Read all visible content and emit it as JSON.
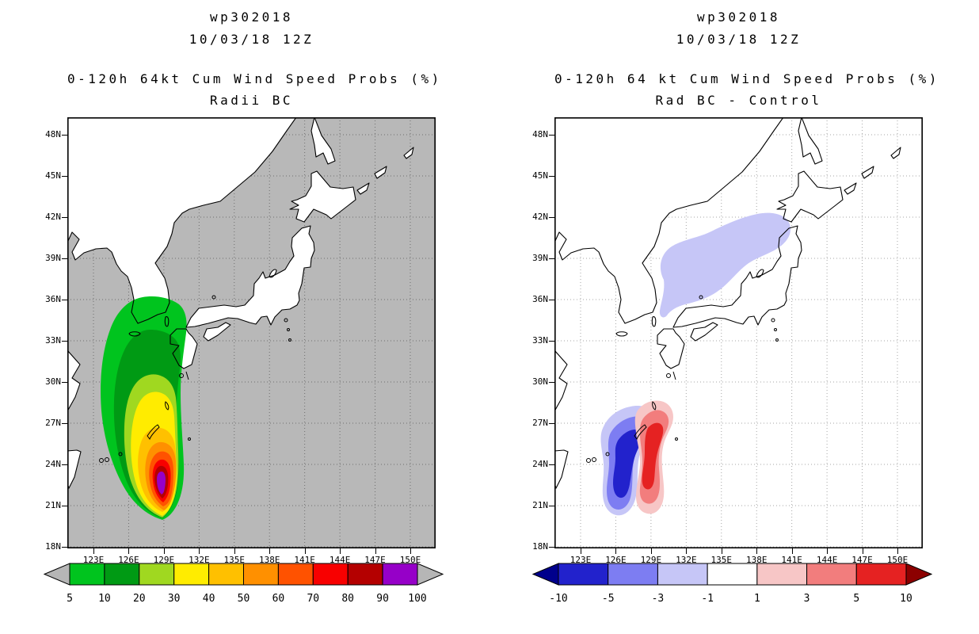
{
  "page": {
    "background": "#ffffff"
  },
  "panels": [
    {
      "header": {
        "storm_id": "wp302018",
        "init_time": "10/03/18 12Z",
        "title": "0-120h 64kt Cum Wind Speed Probs (%)",
        "subtitle": "Radii BC"
      },
      "map": {
        "bg": "#b8b8b8",
        "land": "#ffffff",
        "coast": "#000000",
        "lat_ticks": [
          "48N",
          "45N",
          "42N",
          "39N",
          "36N",
          "33N",
          "30N",
          "27N",
          "24N",
          "21N",
          "18N"
        ],
        "lon_ticks": [
          "123E",
          "126E",
          "129E",
          "132E",
          "135E",
          "138E",
          "141E",
          "144E",
          "147E",
          "150E"
        ]
      },
      "colorbar": {
        "labels": [
          "5",
          "10",
          "20",
          "30",
          "40",
          "50",
          "60",
          "70",
          "80",
          "90",
          "100"
        ],
        "cell_colors": [
          "#00c41e",
          "#009a14",
          "#a0d820",
          "#ffec00",
          "#ffc000",
          "#ff9000",
          "#ff5200",
          "#f80000",
          "#b40000",
          "#9600c8"
        ],
        "left_arrow": "#b6b6b6",
        "right_arrow": "#b6b6b6"
      }
    },
    {
      "header": {
        "storm_id": "wp302018",
        "init_time": "10/03/18 12Z",
        "title": "0-120h 64 kt Cum Wind Speed Probs (%)",
        "subtitle": "Rad BC - Control"
      },
      "map": {
        "bg": "#ffffff",
        "land": "#ffffff",
        "coast": "#000000",
        "lat_ticks": [
          "48N",
          "45N",
          "42N",
          "39N",
          "36N",
          "33N",
          "30N",
          "27N",
          "24N",
          "21N",
          "18N"
        ],
        "lon_ticks": [
          "123E",
          "126E",
          "129E",
          "132E",
          "135E",
          "138E",
          "141E",
          "144E",
          "147E",
          "150E"
        ]
      },
      "colorbar": {
        "labels": [
          "-10",
          "-5",
          "-3",
          "-1",
          "1",
          "3",
          "5",
          "10"
        ],
        "cell_colors": [
          "#2222cc",
          "#7d7df2",
          "#c6c6f7",
          "#ffffff",
          "#f7c6c6",
          "#f27d7d",
          "#e52222"
        ],
        "left_arrow": "#00008c",
        "right_arrow": "#8c0000"
      }
    }
  ],
  "chart_data": [
    {
      "type": "heatmap",
      "storm": "wp302018",
      "init": "10/03/18 12Z",
      "title": "0-120h 64kt Cum Wind Speed Probs (%)",
      "subtitle": "Radii BC",
      "x_ticks": [
        "123E",
        "126E",
        "129E",
        "132E",
        "135E",
        "138E",
        "141E",
        "144E",
        "147E",
        "150E"
      ],
      "y_ticks": [
        "48N",
        "45N",
        "42N",
        "39N",
        "36N",
        "33N",
        "30N",
        "27N",
        "24N",
        "21N",
        "18N"
      ],
      "xlim_lon_e": [
        120.8,
        152.2
      ],
      "ylim_lat_n": [
        17.9,
        49.3
      ],
      "levels_percent": [
        5,
        10,
        20,
        30,
        40,
        50,
        60,
        70,
        80,
        90,
        100
      ],
      "level_colors": [
        "#00c41e",
        "#009a14",
        "#a0d820",
        "#ffec00",
        "#ffc000",
        "#ff9000",
        "#ff5200",
        "#f80000",
        "#b40000",
        "#9600c8"
      ],
      "grid": true,
      "legend_position": "bottom",
      "features": [
        {
          "label": "probability swath core (90-100%)",
          "lat_n": 21.8,
          "lon_e": 128.7
        },
        {
          "label": "5% contour extent",
          "lat_n": [
            20.0,
            36.2
          ],
          "lon_e": [
            123.7,
            130.9
          ]
        },
        {
          "label": "orientation",
          "value": "swath curves NNE from south of Okinawa toward the Korea Strait"
        }
      ]
    },
    {
      "type": "heatmap",
      "storm": "wp302018",
      "init": "10/03/18 12Z",
      "title": "0-120h 64 kt Cum Wind Speed Probs (%)",
      "subtitle": "Rad BC - Control",
      "x_ticks": [
        "123E",
        "126E",
        "129E",
        "132E",
        "135E",
        "138E",
        "141E",
        "144E",
        "147E",
        "150E"
      ],
      "y_ticks": [
        "48N",
        "45N",
        "42N",
        "39N",
        "36N",
        "33N",
        "30N",
        "27N",
        "24N",
        "21N",
        "18N"
      ],
      "xlim_lon_e": [
        120.8,
        152.2
      ],
      "ylim_lat_n": [
        17.9,
        49.3
      ],
      "levels_percent": [
        -10,
        -5,
        -3,
        -1,
        1,
        3,
        5,
        10
      ],
      "level_colors": [
        "#2222cc",
        "#7d7df2",
        "#c6c6f7",
        "#ffffff",
        "#f7c6c6",
        "#f27d7d",
        "#e52222"
      ],
      "grid": true,
      "legend_position": "bottom",
      "features": [
        {
          "label": "negative difference lobe",
          "core": "< -10% near 23.5N 126.5E",
          "lat_n": [
            21.5,
            27.0
          ],
          "lon_e": [
            124.5,
            127.5
          ]
        },
        {
          "label": "positive difference lobe",
          "core": "> +5% near 23.5N 128.0E",
          "lat_n": [
            21.5,
            27.5
          ],
          "lon_e": [
            126.5,
            129.5
          ]
        },
        {
          "label": "weak negative region (-3 to -1%)",
          "lat_n": [
            34.5,
            40.0
          ],
          "lon_e": [
            129.5,
            141.0
          ],
          "note": "over central Japan and the Sea of Japan"
        }
      ]
    }
  ]
}
